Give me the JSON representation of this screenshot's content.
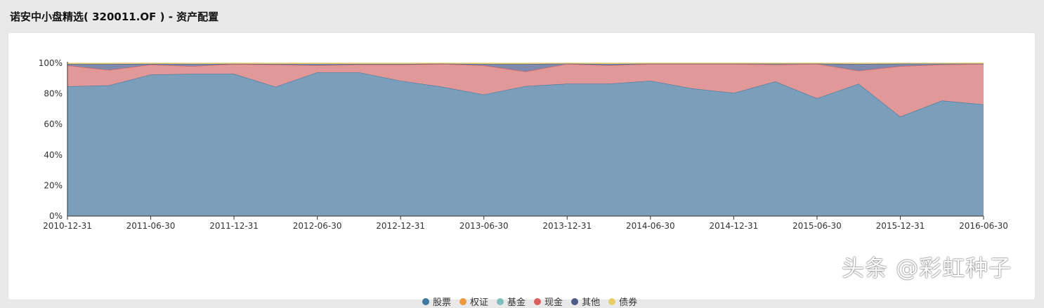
{
  "header": {
    "title": "诺安中小盘精选( 320011.OF ) - 资产配置"
  },
  "watermark": "头条 @彩虹种子",
  "chart_data": {
    "type": "area",
    "stacked": true,
    "x": [
      "2010-12-31",
      "2011-03-31",
      "2011-06-30",
      "2011-09-30",
      "2011-12-31",
      "2012-03-31",
      "2012-06-30",
      "2012-09-30",
      "2012-12-31",
      "2013-03-31",
      "2013-06-30",
      "2013-09-30",
      "2013-12-31",
      "2014-03-31",
      "2014-06-30",
      "2014-09-30",
      "2014-12-31",
      "2015-03-31",
      "2015-06-30",
      "2015-09-30",
      "2015-12-31",
      "2016-03-31",
      "2016-06-30"
    ],
    "x_tick_labels": [
      "2010-12-31",
      "2011-06-30",
      "2011-12-31",
      "2012-06-30",
      "2012-12-31",
      "2013-06-30",
      "2013-12-31",
      "2014-06-30",
      "2014-12-31",
      "2015-06-30",
      "2015-12-31",
      "2016-06-30"
    ],
    "ylim": [
      0,
      100
    ],
    "y_tick_labels": [
      "0%",
      "20%",
      "40%",
      "60%",
      "80%",
      "100%"
    ],
    "grid": true,
    "legend_position": "bottom",
    "series": [
      {
        "name": "股票",
        "color": "#7b9fba",
        "marker": "#3f79a1",
        "values": [
          84.8,
          85.5,
          92.5,
          93.0,
          93.0,
          84.5,
          94.0,
          94.0,
          88.5,
          84.5,
          79.5,
          85.0,
          86.5,
          86.5,
          88.5,
          83.5,
          80.5,
          88.0,
          77.0,
          86.5,
          65.0,
          75.5,
          73.0
        ]
      },
      {
        "name": "权证",
        "color": "#f0a050",
        "marker": "#ee9a3a",
        "values": [
          0,
          0,
          0,
          0,
          0,
          0,
          0,
          0,
          0,
          0,
          0,
          0,
          0,
          0,
          0,
          0,
          0,
          0,
          0,
          0,
          0,
          0,
          0
        ]
      },
      {
        "name": "基金",
        "color": "#8ec3c4",
        "marker": "#7ebdbf",
        "values": [
          0,
          0,
          0,
          0,
          0,
          0,
          0,
          0,
          0,
          0,
          0,
          0,
          0,
          0,
          0,
          0,
          0,
          0,
          0,
          0,
          0,
          0,
          0
        ]
      },
      {
        "name": "现金",
        "color": "#e09898",
        "marker": "#d9605c",
        "values": [
          13.7,
          10.0,
          6.5,
          5.0,
          6.5,
          14.5,
          4.5,
          5.0,
          10.5,
          15.0,
          19.0,
          9.5,
          13.0,
          12.0,
          11.0,
          16.0,
          19.0,
          11.0,
          22.5,
          8.5,
          33.0,
          23.5,
          26.5
        ]
      },
      {
        "name": "其他",
        "color": "#7e89ac",
        "marker": "#4f5b86",
        "values": [
          1.0,
          4.0,
          0.6,
          1.5,
          0.1,
          0.5,
          1.0,
          0.5,
          0.5,
          0.2,
          1.0,
          5.0,
          0.2,
          1.0,
          0.2,
          0.2,
          0.2,
          0.7,
          0.2,
          4.5,
          1.7,
          0.7,
          0.2
        ]
      },
      {
        "name": "债券",
        "color": "#eedb8c",
        "marker": "#e6cf6a",
        "values": [
          0.5,
          0.5,
          0.4,
          0.5,
          0.4,
          0.5,
          0.5,
          0.5,
          0.5,
          0.3,
          0.5,
          0.5,
          0.3,
          0.5,
          0.3,
          0.3,
          0.3,
          0.3,
          0.3,
          0.5,
          0.3,
          0.3,
          0.3
        ]
      }
    ]
  }
}
